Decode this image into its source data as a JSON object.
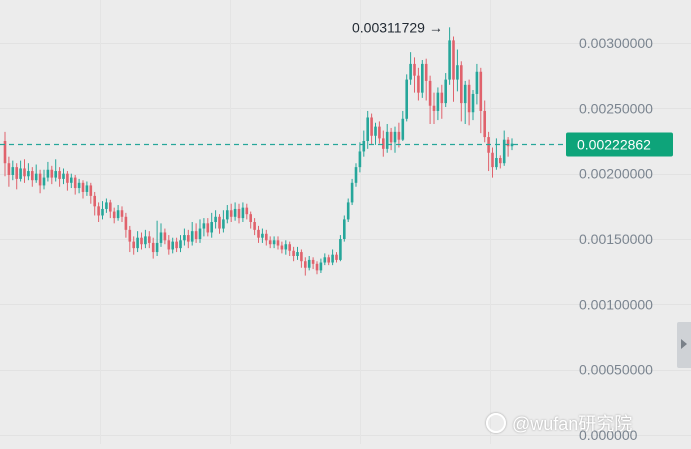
{
  "chart_data": {
    "type": "candlestick",
    "y_ticks": [
      0.0,
      0.0005,
      0.001,
      0.0015,
      0.002,
      0.0025,
      0.003
    ],
    "y_tick_labels": [
      "0.000000",
      "0.00050000",
      "0.00100000",
      "0.00150000",
      "0.00200000",
      "0.00250000",
      "0.00300000"
    ],
    "ylim": [
      0.0,
      0.0032
    ],
    "current_price": 0.00222862,
    "current_price_label": "0.00222862",
    "high_marker": {
      "value": 0.00311729,
      "label": "0.00311729 →"
    },
    "colors": {
      "up": "#26a69a",
      "down": "#e0626c",
      "price_line": "#26a69a",
      "price_tag_bg": "#0ea47a"
    },
    "candles": [
      [
        0.00225,
        0.00208,
        0.00232,
        0.00198
      ],
      [
        0.00208,
        0.00199,
        0.00213,
        0.0019
      ],
      [
        0.00199,
        0.00205,
        0.0021,
        0.00195
      ],
      [
        0.00205,
        0.00196,
        0.00208,
        0.00188
      ],
      [
        0.00196,
        0.00204,
        0.0021,
        0.00194
      ],
      [
        0.00204,
        0.00198,
        0.00211,
        0.00193
      ],
      [
        0.00198,
        0.00202,
        0.00208,
        0.00195
      ],
      [
        0.00202,
        0.00195,
        0.00205,
        0.0019
      ],
      [
        0.00195,
        0.002,
        0.00207,
        0.00193
      ],
      [
        0.002,
        0.00191,
        0.00203,
        0.00185
      ],
      [
        0.00191,
        0.00197,
        0.00203,
        0.00188
      ],
      [
        0.00197,
        0.00203,
        0.00209,
        0.00194
      ],
      [
        0.00203,
        0.00197,
        0.00206,
        0.00192
      ],
      [
        0.00197,
        0.00202,
        0.00211,
        0.00194
      ],
      [
        0.00202,
        0.00196,
        0.00205,
        0.0019
      ],
      [
        0.00196,
        0.002,
        0.00204,
        0.00192
      ],
      [
        0.002,
        0.00193,
        0.00202,
        0.00187
      ],
      [
        0.00193,
        0.00197,
        0.002,
        0.00189
      ],
      [
        0.00197,
        0.00189,
        0.00199,
        0.00184
      ],
      [
        0.00189,
        0.00193,
        0.00196,
        0.00185
      ],
      [
        0.00193,
        0.00186,
        0.00195,
        0.00181
      ],
      [
        0.00186,
        0.00191,
        0.00194,
        0.00183
      ],
      [
        0.00191,
        0.00183,
        0.00193,
        0.00177
      ],
      [
        0.00183,
        0.00175,
        0.00186,
        0.00168
      ],
      [
        0.00175,
        0.00168,
        0.00178,
        0.00163
      ],
      [
        0.00168,
        0.00173,
        0.00179,
        0.00165
      ],
      [
        0.00173,
        0.00178,
        0.00181,
        0.0017
      ],
      [
        0.00178,
        0.00171,
        0.0018,
        0.00166
      ],
      [
        0.00171,
        0.00166,
        0.00174,
        0.00162
      ],
      [
        0.00166,
        0.00172,
        0.00176,
        0.00164
      ],
      [
        0.00172,
        0.00167,
        0.00175,
        0.00163
      ],
      [
        0.00167,
        0.00157,
        0.0017,
        0.00151
      ],
      [
        0.00157,
        0.00148,
        0.0016,
        0.0014
      ],
      [
        0.00148,
        0.00143,
        0.00152,
        0.00138
      ],
      [
        0.00143,
        0.00151,
        0.00156,
        0.0014
      ],
      [
        0.00151,
        0.00146,
        0.00155,
        0.00142
      ],
      [
        0.00146,
        0.00152,
        0.00157,
        0.00143
      ],
      [
        0.00152,
        0.00147,
        0.00156,
        0.00143
      ],
      [
        0.00147,
        0.0014,
        0.00151,
        0.00135
      ],
      [
        0.0014,
        0.00147,
        0.00164,
        0.00137
      ],
      [
        0.00147,
        0.00155,
        0.00162,
        0.00144
      ],
      [
        0.00155,
        0.00149,
        0.00158,
        0.00146
      ],
      [
        0.00149,
        0.00142,
        0.00153,
        0.00138
      ],
      [
        0.00142,
        0.00148,
        0.00151,
        0.00139
      ],
      [
        0.00148,
        0.00143,
        0.00151,
        0.0014
      ],
      [
        0.00143,
        0.00149,
        0.00153,
        0.0014
      ],
      [
        0.00149,
        0.00153,
        0.00158,
        0.00145
      ],
      [
        0.00153,
        0.00148,
        0.00157,
        0.00143
      ],
      [
        0.00148,
        0.00156,
        0.00163,
        0.00145
      ],
      [
        0.00156,
        0.0015,
        0.00162,
        0.00147
      ],
      [
        0.0015,
        0.00158,
        0.00165,
        0.00147
      ],
      [
        0.00158,
        0.00162,
        0.00166,
        0.00152
      ],
      [
        0.00162,
        0.00155,
        0.00166,
        0.00152
      ],
      [
        0.00155,
        0.00163,
        0.0017,
        0.00151
      ],
      [
        0.00163,
        0.00167,
        0.00172,
        0.00158
      ],
      [
        0.00167,
        0.00158,
        0.00169,
        0.00154
      ],
      [
        0.00158,
        0.00165,
        0.00172,
        0.00155
      ],
      [
        0.00165,
        0.00172,
        0.00176,
        0.00162
      ],
      [
        0.00172,
        0.00167,
        0.00177,
        0.00163
      ],
      [
        0.00167,
        0.00173,
        0.00178,
        0.00164
      ],
      [
        0.00173,
        0.00166,
        0.00177,
        0.00162
      ],
      [
        0.00166,
        0.00174,
        0.00178,
        0.00163
      ],
      [
        0.00174,
        0.00169,
        0.00177,
        0.00165
      ],
      [
        0.00169,
        0.00163,
        0.00171,
        0.00158
      ],
      [
        0.00163,
        0.00157,
        0.00166,
        0.00153
      ],
      [
        0.00157,
        0.00151,
        0.0016,
        0.00147
      ],
      [
        0.00151,
        0.00154,
        0.00158,
        0.00147
      ],
      [
        0.00154,
        0.00149,
        0.00157,
        0.00145
      ],
      [
        0.00149,
        0.00146,
        0.00152,
        0.00143
      ],
      [
        0.00146,
        0.00149,
        0.00152,
        0.00143
      ],
      [
        0.00149,
        0.00145,
        0.00152,
        0.00142
      ],
      [
        0.00145,
        0.00142,
        0.00148,
        0.00139
      ],
      [
        0.00142,
        0.00146,
        0.00149,
        0.00138
      ],
      [
        0.00146,
        0.00141,
        0.00148,
        0.00137
      ],
      [
        0.00141,
        0.00137,
        0.00144,
        0.00133
      ],
      [
        0.00137,
        0.0014,
        0.00144,
        0.00134
      ],
      [
        0.0014,
        0.00133,
        0.00142,
        0.00128
      ],
      [
        0.00133,
        0.00128,
        0.00136,
        0.00122
      ],
      [
        0.00128,
        0.00134,
        0.00137,
        0.00126
      ],
      [
        0.00134,
        0.00131,
        0.00136,
        0.00127
      ],
      [
        0.00131,
        0.00126,
        0.00133,
        0.00123
      ],
      [
        0.00126,
        0.00132,
        0.00135,
        0.00124
      ],
      [
        0.00132,
        0.00136,
        0.00139,
        0.0013
      ],
      [
        0.00136,
        0.00132,
        0.00138,
        0.0013
      ],
      [
        0.00132,
        0.00138,
        0.00142,
        0.0013
      ],
      [
        0.00138,
        0.00134,
        0.0014,
        0.00132
      ],
      [
        0.00134,
        0.0015,
        0.00153,
        0.00133
      ],
      [
        0.0015,
        0.00165,
        0.00168,
        0.00148
      ],
      [
        0.00165,
        0.00178,
        0.00181,
        0.00163
      ],
      [
        0.00178,
        0.00193,
        0.00196,
        0.00176
      ],
      [
        0.00193,
        0.00205,
        0.00208,
        0.0019
      ],
      [
        0.00205,
        0.00217,
        0.00224,
        0.00201
      ],
      [
        0.00217,
        0.00225,
        0.00233,
        0.00213
      ],
      [
        0.00225,
        0.00243,
        0.00248,
        0.00219
      ],
      [
        0.00243,
        0.00229,
        0.00246,
        0.00222
      ],
      [
        0.00229,
        0.00236,
        0.00239,
        0.00222
      ],
      [
        0.00236,
        0.00227,
        0.0024,
        0.00223
      ],
      [
        0.00227,
        0.00219,
        0.00233,
        0.00213
      ],
      [
        0.00219,
        0.00232,
        0.00238,
        0.00216
      ],
      [
        0.00232,
        0.00224,
        0.00235,
        0.00218
      ],
      [
        0.00224,
        0.00232,
        0.00236,
        0.00216
      ],
      [
        0.00232,
        0.00226,
        0.00239,
        0.0022
      ],
      [
        0.00226,
        0.00242,
        0.00248,
        0.00225
      ],
      [
        0.00242,
        0.00272,
        0.00276,
        0.0024
      ],
      [
        0.00272,
        0.00284,
        0.00293,
        0.00268
      ],
      [
        0.00284,
        0.00275,
        0.00289,
        0.00262
      ],
      [
        0.00275,
        0.00262,
        0.00281,
        0.00256
      ],
      [
        0.00262,
        0.00284,
        0.00287,
        0.00258
      ],
      [
        0.00284,
        0.00271,
        0.00288,
        0.00256
      ],
      [
        0.00271,
        0.00252,
        0.00275,
        0.00238
      ],
      [
        0.00252,
        0.00248,
        0.00262,
        0.00238
      ],
      [
        0.00248,
        0.00262,
        0.00266,
        0.00241
      ],
      [
        0.00262,
        0.00254,
        0.00268,
        0.00242
      ],
      [
        0.00254,
        0.00272,
        0.00277,
        0.00251
      ],
      [
        0.00272,
        0.00302,
        0.00312,
        0.00268
      ],
      [
        0.00302,
        0.00272,
        0.00305,
        0.00255
      ],
      [
        0.00272,
        0.00283,
        0.00295,
        0.00263
      ],
      [
        0.00283,
        0.00254,
        0.00286,
        0.0024
      ],
      [
        0.00254,
        0.00268,
        0.00271,
        0.00238
      ],
      [
        0.00268,
        0.00247,
        0.00272,
        0.00237
      ],
      [
        0.00247,
        0.00261,
        0.00264,
        0.00241
      ],
      [
        0.00261,
        0.00278,
        0.00284,
        0.00253
      ],
      [
        0.00278,
        0.00248,
        0.00281,
        0.00231
      ],
      [
        0.00248,
        0.00228,
        0.00256,
        0.00224
      ],
      [
        0.00228,
        0.00216,
        0.00232,
        0.00202
      ],
      [
        0.00216,
        0.00205,
        0.0022,
        0.00197
      ],
      [
        0.00205,
        0.00212,
        0.00227,
        0.00203
      ],
      [
        0.00212,
        0.00208,
        0.00214,
        0.00204
      ],
      [
        0.00208,
        0.00226,
        0.00233,
        0.00206
      ],
      [
        0.00226,
        0.00221,
        0.00228,
        0.00213
      ],
      [
        0.00221,
        0.00223,
        0.00227,
        0.00218
      ]
    ]
  },
  "watermark_text": "@wufan研究院"
}
